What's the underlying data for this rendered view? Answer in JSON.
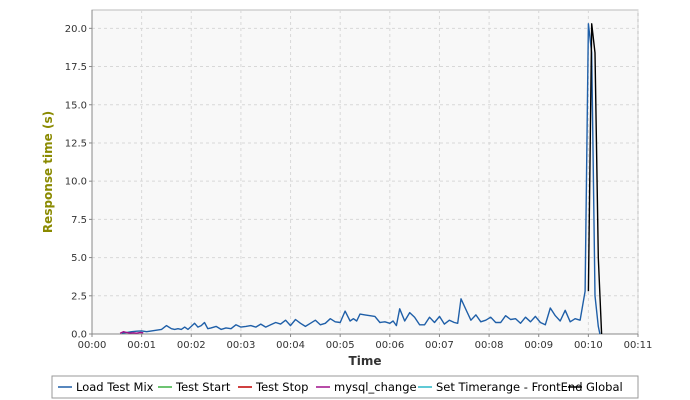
{
  "chart_data": {
    "type": "line",
    "xlabel": "Time",
    "ylabel": "Response time (s)",
    "xlim": [
      0,
      660
    ],
    "ylim": [
      0,
      21.2
    ],
    "x_tick_values": [
      0,
      60,
      120,
      180,
      240,
      300,
      360,
      420,
      480,
      540,
      600,
      660
    ],
    "x_tick_labels": [
      "00:00",
      "00:01",
      "00:02",
      "00:03",
      "00:04",
      "00:05",
      "00:06",
      "00:07",
      "00:08",
      "00:09",
      "00:10",
      "00:11"
    ],
    "y_tick_values": [
      0,
      2.5,
      5,
      7.5,
      10,
      12.5,
      15,
      17.5,
      20
    ],
    "y_tick_labels": [
      "0.0",
      "2.5",
      "5.0",
      "7.5",
      "10.0",
      "12.5",
      "15.0",
      "17.5",
      "20.0"
    ],
    "grid": true,
    "legend_position": "bottom",
    "colors": {
      "ylabel": "#8a8a00",
      "plot_background": "#f8f8f8",
      "grid": "#d8d8d8"
    },
    "series": [
      {
        "name": "Load Test Mix",
        "color": "#1f5fa8",
        "x": [
          36,
          42,
          48,
          54,
          60,
          66,
          72,
          78,
          84,
          90,
          96,
          100,
          104,
          108,
          112,
          116,
          120,
          124,
          128,
          132,
          136,
          140,
          144,
          150,
          156,
          162,
          168,
          174,
          180,
          186,
          192,
          198,
          204,
          210,
          216,
          222,
          228,
          234,
          240,
          246,
          252,
          258,
          264,
          270,
          276,
          282,
          288,
          294,
          300,
          306,
          312,
          316,
          320,
          324,
          330,
          336,
          342,
          348,
          354,
          360,
          364,
          368,
          372,
          378,
          384,
          390,
          396,
          402,
          408,
          414,
          420,
          426,
          432,
          438,
          442,
          446,
          452,
          458,
          464,
          470,
          476,
          482,
          488,
          494,
          500,
          506,
          512,
          518,
          524,
          530,
          536,
          542,
          548,
          554,
          560,
          566,
          572,
          578,
          584,
          590,
          596,
          600,
          604,
          608,
          612,
          614
        ],
        "y": [
          0.05,
          0.1,
          0.15,
          0.18,
          0.2,
          0.15,
          0.2,
          0.25,
          0.3,
          0.55,
          0.35,
          0.3,
          0.35,
          0.3,
          0.45,
          0.3,
          0.5,
          0.7,
          0.45,
          0.55,
          0.75,
          0.35,
          0.4,
          0.5,
          0.3,
          0.4,
          0.35,
          0.6,
          0.45,
          0.5,
          0.55,
          0.45,
          0.65,
          0.45,
          0.6,
          0.75,
          0.65,
          0.9,
          0.55,
          0.95,
          0.7,
          0.5,
          0.7,
          0.9,
          0.6,
          0.7,
          1.0,
          0.8,
          0.75,
          1.5,
          0.85,
          1.0,
          0.85,
          1.3,
          1.25,
          1.2,
          1.15,
          0.75,
          0.8,
          0.7,
          0.85,
          0.55,
          1.65,
          0.85,
          1.4,
          1.1,
          0.6,
          0.6,
          1.1,
          0.75,
          1.15,
          0.65,
          0.9,
          0.75,
          0.7,
          2.3,
          1.6,
          0.9,
          1.25,
          0.8,
          0.9,
          1.1,
          0.75,
          0.75,
          1.2,
          0.95,
          1.0,
          0.7,
          1.1,
          0.8,
          1.15,
          0.75,
          0.6,
          1.7,
          1.2,
          0.85,
          1.55,
          0.8,
          1.0,
          0.9,
          2.8,
          20.3,
          18.4,
          2.5,
          0.5,
          0.0
        ]
      },
      {
        "name": "Test Start",
        "color": "#3cb043",
        "x": [],
        "y": []
      },
      {
        "name": "Test Stop",
        "color": "#c00000",
        "x": [],
        "y": []
      },
      {
        "name": "mysql_change",
        "color": "#a0108a",
        "x": [
          34,
          38,
          42,
          46,
          50,
          54,
          58,
          62
        ],
        "y": [
          0.05,
          0.15,
          0.1,
          0.05,
          0.08,
          0.05,
          0.1,
          0.08
        ]
      },
      {
        "name": "Set Timerange - FrontEnd",
        "color": "#2ab8c8",
        "x": [],
        "y": []
      },
      {
        "name": "Global",
        "color": "#000000",
        "x": [
          600,
          604,
          608,
          612,
          616
        ],
        "y": [
          2.8,
          20.3,
          18.4,
          5.0,
          0.0
        ]
      }
    ]
  }
}
